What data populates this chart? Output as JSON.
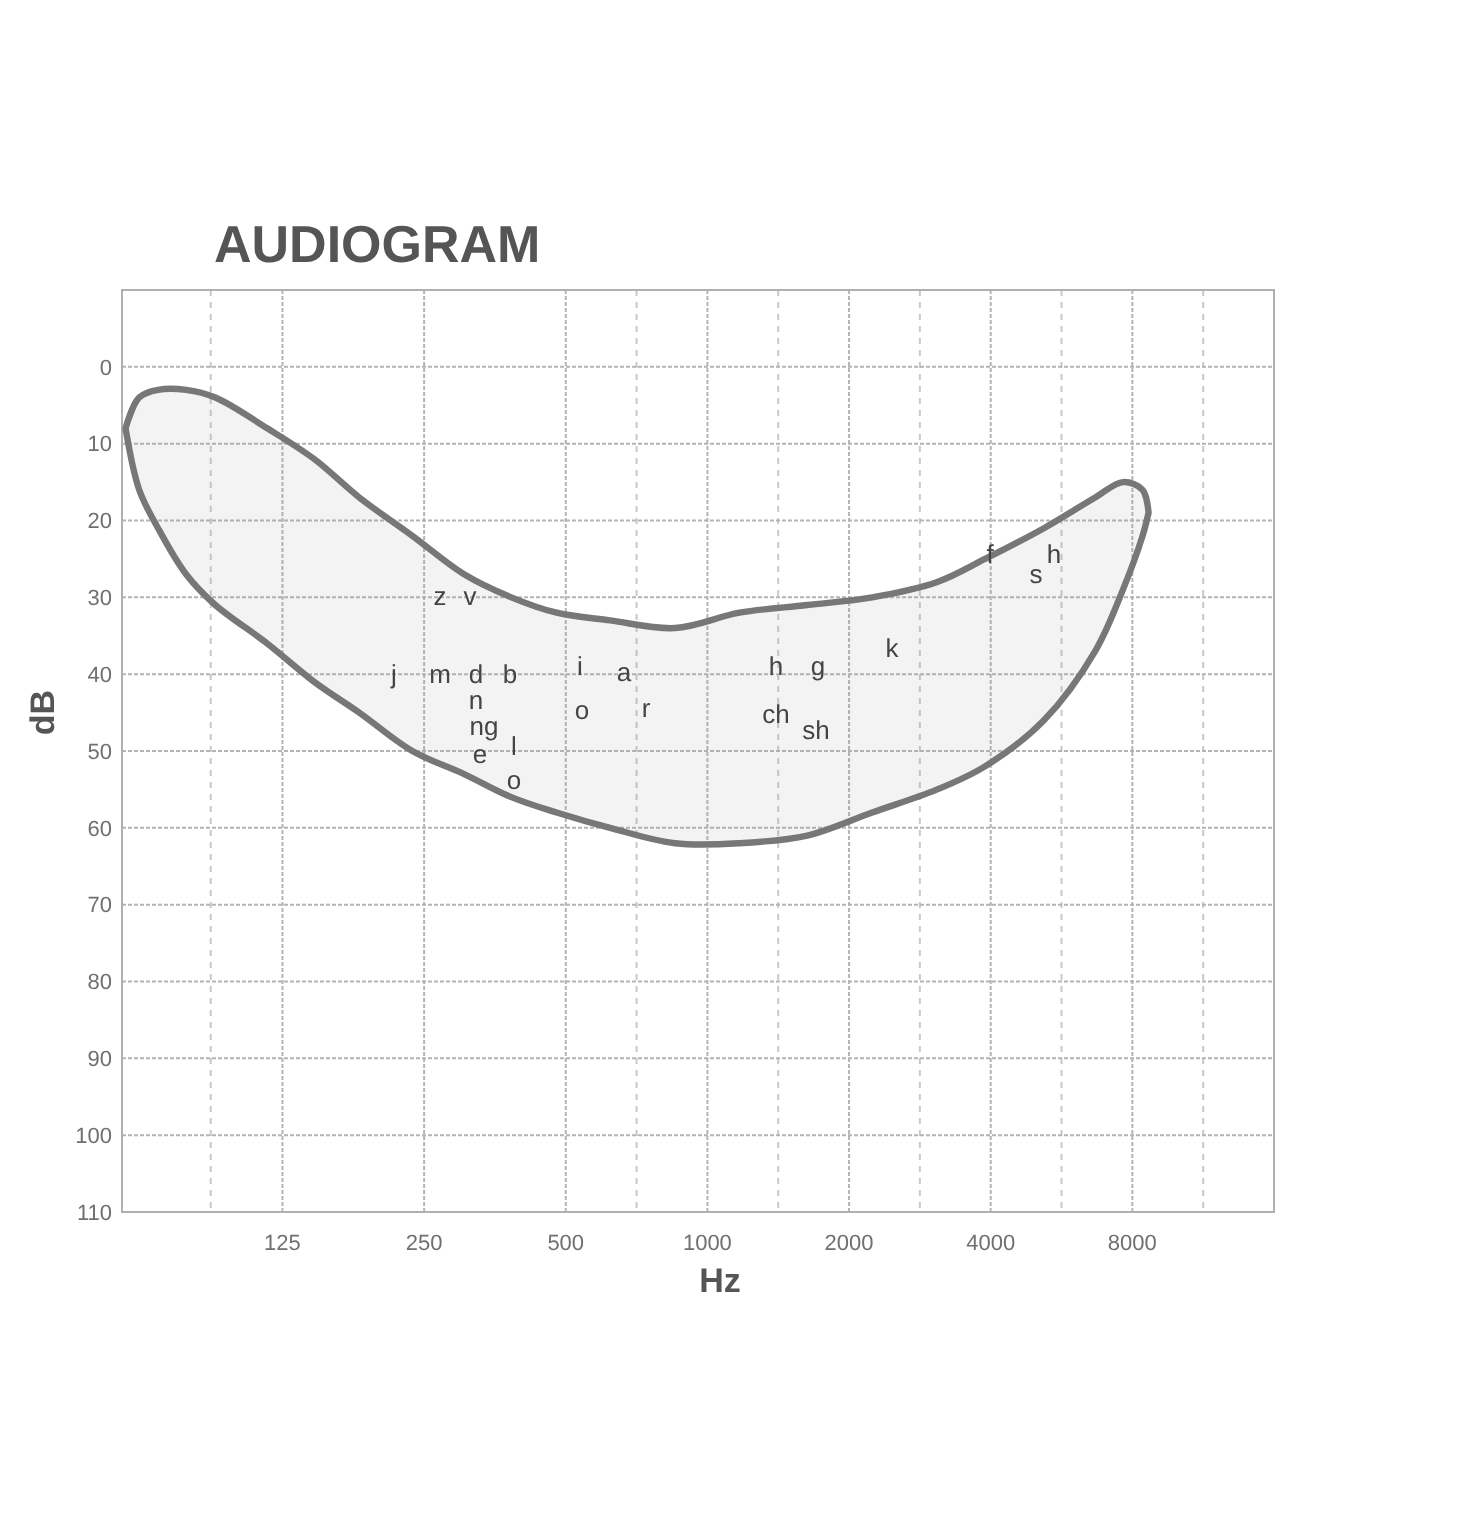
{
  "chart_data": {
    "type": "line",
    "title": "AUDIOGRAM",
    "xlabel": "Hz",
    "ylabel": "dB",
    "log": "x",
    "xlim": [
      57,
      16000
    ],
    "xticks": [
      {
        "value": 88,
        "label": null
      },
      125,
      250,
      500,
      {
        "value": 707,
        "label": null
      },
      1000,
      {
        "value": 1414,
        "label": null
      },
      2000,
      {
        "value": 2828,
        "label": null
      },
      4000,
      {
        "value": 5657,
        "label": null
      },
      8000,
      {
        "value": 11314,
        "label": null
      }
    ],
    "ylim": [
      110,
      -10
    ],
    "yticks": [
      0,
      10,
      20,
      30,
      40,
      50,
      60,
      70,
      80,
      90,
      100,
      110
    ],
    "grid": true,
    "series": [
      {
        "color": "#777777",
        "x": [
          58,
          62,
          68,
          78,
          90,
          116,
          146,
          182,
          236,
          304,
          383,
          478,
          621,
          854,
          1170,
          1630,
          2240,
          3080,
          3890,
          5190,
          6670,
          7640,
          8410,
          8660
        ],
        "values": [
          null,
          null,
          null,
          null,
          null,
          null,
          null,
          null,
          null,
          null,
          null,
          null,
          null,
          null,
          null,
          null,
          null,
          null,
          null,
          null,
          null,
          null,
          null,
          null
        ],
        "lower": [
          8,
          16,
          21,
          27,
          31,
          36,
          41,
          45,
          50,
          53,
          56,
          58,
          60,
          62,
          62,
          61,
          58,
          55,
          52,
          46,
          37,
          29,
          22,
          19
        ],
        "upper": [
          8,
          4,
          3,
          3,
          4,
          8,
          12,
          17,
          22,
          27,
          30,
          32,
          33,
          34,
          32,
          31,
          30,
          28,
          25,
          21,
          17,
          15,
          16,
          19
        ]
      }
    ],
    "annotations": [
      "z",
      "v",
      "j",
      "m",
      "d",
      "b",
      "n",
      "ng",
      "e",
      "l",
      "o",
      "i",
      "a",
      "o",
      "r",
      "h",
      "g",
      "ch",
      "sh",
      "k",
      "f",
      "s",
      "h"
    ]
  }
}
